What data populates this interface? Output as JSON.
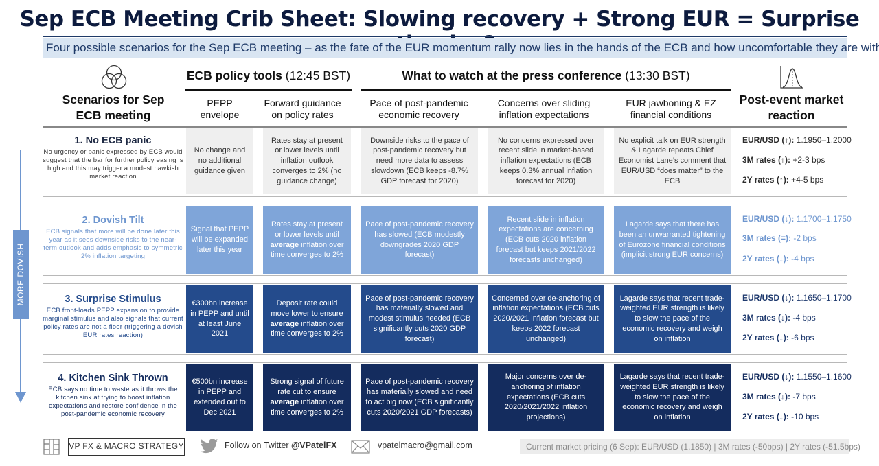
{
  "title": "Sep ECB Meeting Crib Sheet: Slowing recovery + Strong EUR = Surprise stimulus?",
  "subtitle": "Four possible scenarios for the Sep ECB meeting – as the fate of the EUR momentum rally now lies in the hands of the ECB and how uncomfortable they are with it",
  "headers": {
    "scenarios": "Scenarios for Sep ECB meeting",
    "policy_tools": "ECB policy tools",
    "policy_tools_time": "(12:45 BST)",
    "press": "What to watch at the press conference",
    "press_time": "(13:30 BST)",
    "reaction": "Post-event market reaction",
    "columns": [
      "PEPP envelope",
      "Forward guidance on policy rates",
      "Pace of post-pandemic economic recovery",
      "Concerns over sliding inflation expectations",
      "EUR jawboning & EZ financial conditions"
    ]
  },
  "side_label": "MORE DOVISH",
  "scenarios": [
    {
      "title": "1. No ECB panic",
      "desc": "No urgency or panic expressed by ECB would suggest that the bar for further policy easing is high and this may trigger a modest hawkish market reaction",
      "cells": [
        {
          "text": "No change and no additional guidance given"
        },
        {
          "text": "Rates stay at present or lower levels until inflation outlook converges to 2% (no guidance change)"
        },
        {
          "text": "Downside risks to the pace of post-pandemic recovery but need more data to assess slowdown (ECB keeps -8.7% GDP forecast for 2020)"
        },
        {
          "text": "No concerns expressed over recent slide in market-based inflation expectations (ECB keeps 0.3% annual inflation forecast for 2020)"
        },
        {
          "text": "No explicit talk on EUR strength & Lagarde repeats Chief Economist Lane’s comment that EUR/USD “does matter” to the ECB"
        }
      ],
      "reactions": [
        {
          "label": "EUR/USD (↑):",
          "value": "1.1950–1.2000"
        },
        {
          "label": "3M rates (↑):",
          "value": "+2-3 bps"
        },
        {
          "label": "2Y rates (↑):",
          "value": "+4-5 bps"
        }
      ]
    },
    {
      "title": "2. Dovish Tilt",
      "desc": "ECB signals that more will be done later this year as it sees downside risks to the near-term outlook and adds emphasis to symmetric 2% inflation targeting",
      "cells": [
        {
          "text": "Signal that PEPP will be expanded later this year"
        },
        {
          "pre": "Rates stay at present or lower levels until",
          "bold": "average",
          "post": "inflation over time converges to 2%"
        },
        {
          "text": "Pace of post-pandemic recovery has slowed (ECB modestly downgrades 2020 GDP forecast)"
        },
        {
          "text": "Recent slide in inflation expectations are concerning (ECB cuts 2020 inflation forecast but keeps 2021/2022 forecasts unchanged)"
        },
        {
          "text": "Lagarde says that there has been an unwarranted tightening of Eurozone financial conditions (implicit strong EUR concerns)"
        }
      ],
      "reactions": [
        {
          "label": "EUR/USD (↓):",
          "value": "1.1700–1.1750"
        },
        {
          "label": "3M rates (=):",
          "value": "-2 bps"
        },
        {
          "label": "2Y rates (↓):",
          "value": "-4 bps"
        }
      ]
    },
    {
      "title": "3. Surprise Stimulus",
      "desc": "ECB front-loads PEPP expansion to provide marginal stimulus and also signals that current policy rates are not a floor (triggering a dovish EUR rates reaction)",
      "cells": [
        {
          "text": "€300bn increase in PEPP and until at least June 2021"
        },
        {
          "pre": "Deposit rate could move lower to ensure",
          "bold": "average",
          "post": "inflation over time converges to 2%"
        },
        {
          "text": "Pace of post-pandemic recovery has materially slowed and modest stimulus needed (ECB significantly cuts 2020 GDP forecast)"
        },
        {
          "text": "Concerned over de-anchoring of inflation expectations (ECB cuts 2020/2021 inflation forecast but keeps 2022 forecast unchanged)"
        },
        {
          "text": "Lagarde says that recent trade-weighted EUR strength is likely to slow the pace of the economic recovery and weigh on inflation"
        }
      ],
      "reactions": [
        {
          "label": "EUR/USD (↓):",
          "value": "1.1650–1.1700"
        },
        {
          "label": "3M rates (↓):",
          "value": "-4 bps"
        },
        {
          "label": "2Y rates (↓):",
          "value": "-6 bps"
        }
      ]
    },
    {
      "title": "4. Kitchen Sink Thrown",
      "desc": "ECB says no time to waste as it throws the kitchen sink at trying to boost inflation expectations and restore confidence in the post-pandemic economic recovery",
      "cells": [
        {
          "text": "€500bn increase in PEPP and extended out to Dec 2021"
        },
        {
          "pre": "Strong signal of future rate cut to ensure",
          "bold": "average",
          "post": "inflation over time converges to 2%"
        },
        {
          "text": "Pace of post-pandemic recovery has materially slowed and need to act big now (ECB significantly cuts 2020/2021 GDP forecasts)"
        },
        {
          "text": "Major concerns over de-anchoring of inflation expectations (ECB cuts 2020/2021/2022 inflation projections)"
        },
        {
          "text": "Lagarde says that recent trade-weighted EUR strength is likely to slow the pace of the economic recovery and weigh on inflation"
        }
      ],
      "reactions": [
        {
          "label": "EUR/USD (↓):",
          "value": "1.1550–1.1600"
        },
        {
          "label": "3M rates (↓):",
          "value": "-7 bps"
        },
        {
          "label": "2Y rates (↓):",
          "value": "-10 bps"
        }
      ]
    }
  ],
  "footer": {
    "brand": "VP FX & MACRO STRATEGY",
    "twitter_prefix": "Follow on Twitter",
    "twitter_handle": "@VPatelFX",
    "email": "vpatelmacro@gmail.com",
    "pricing": "Current market pricing (6 Sep): EUR/USD (1.1850) | 3M rates (-50bps) | 2Y rates (-51.5bps)"
  },
  "colors": {
    "row1": "#efefef",
    "row2": "#7fa5d9",
    "row3": "#244b8c",
    "row4": "#142c5e",
    "accent": "#6e96cf"
  }
}
